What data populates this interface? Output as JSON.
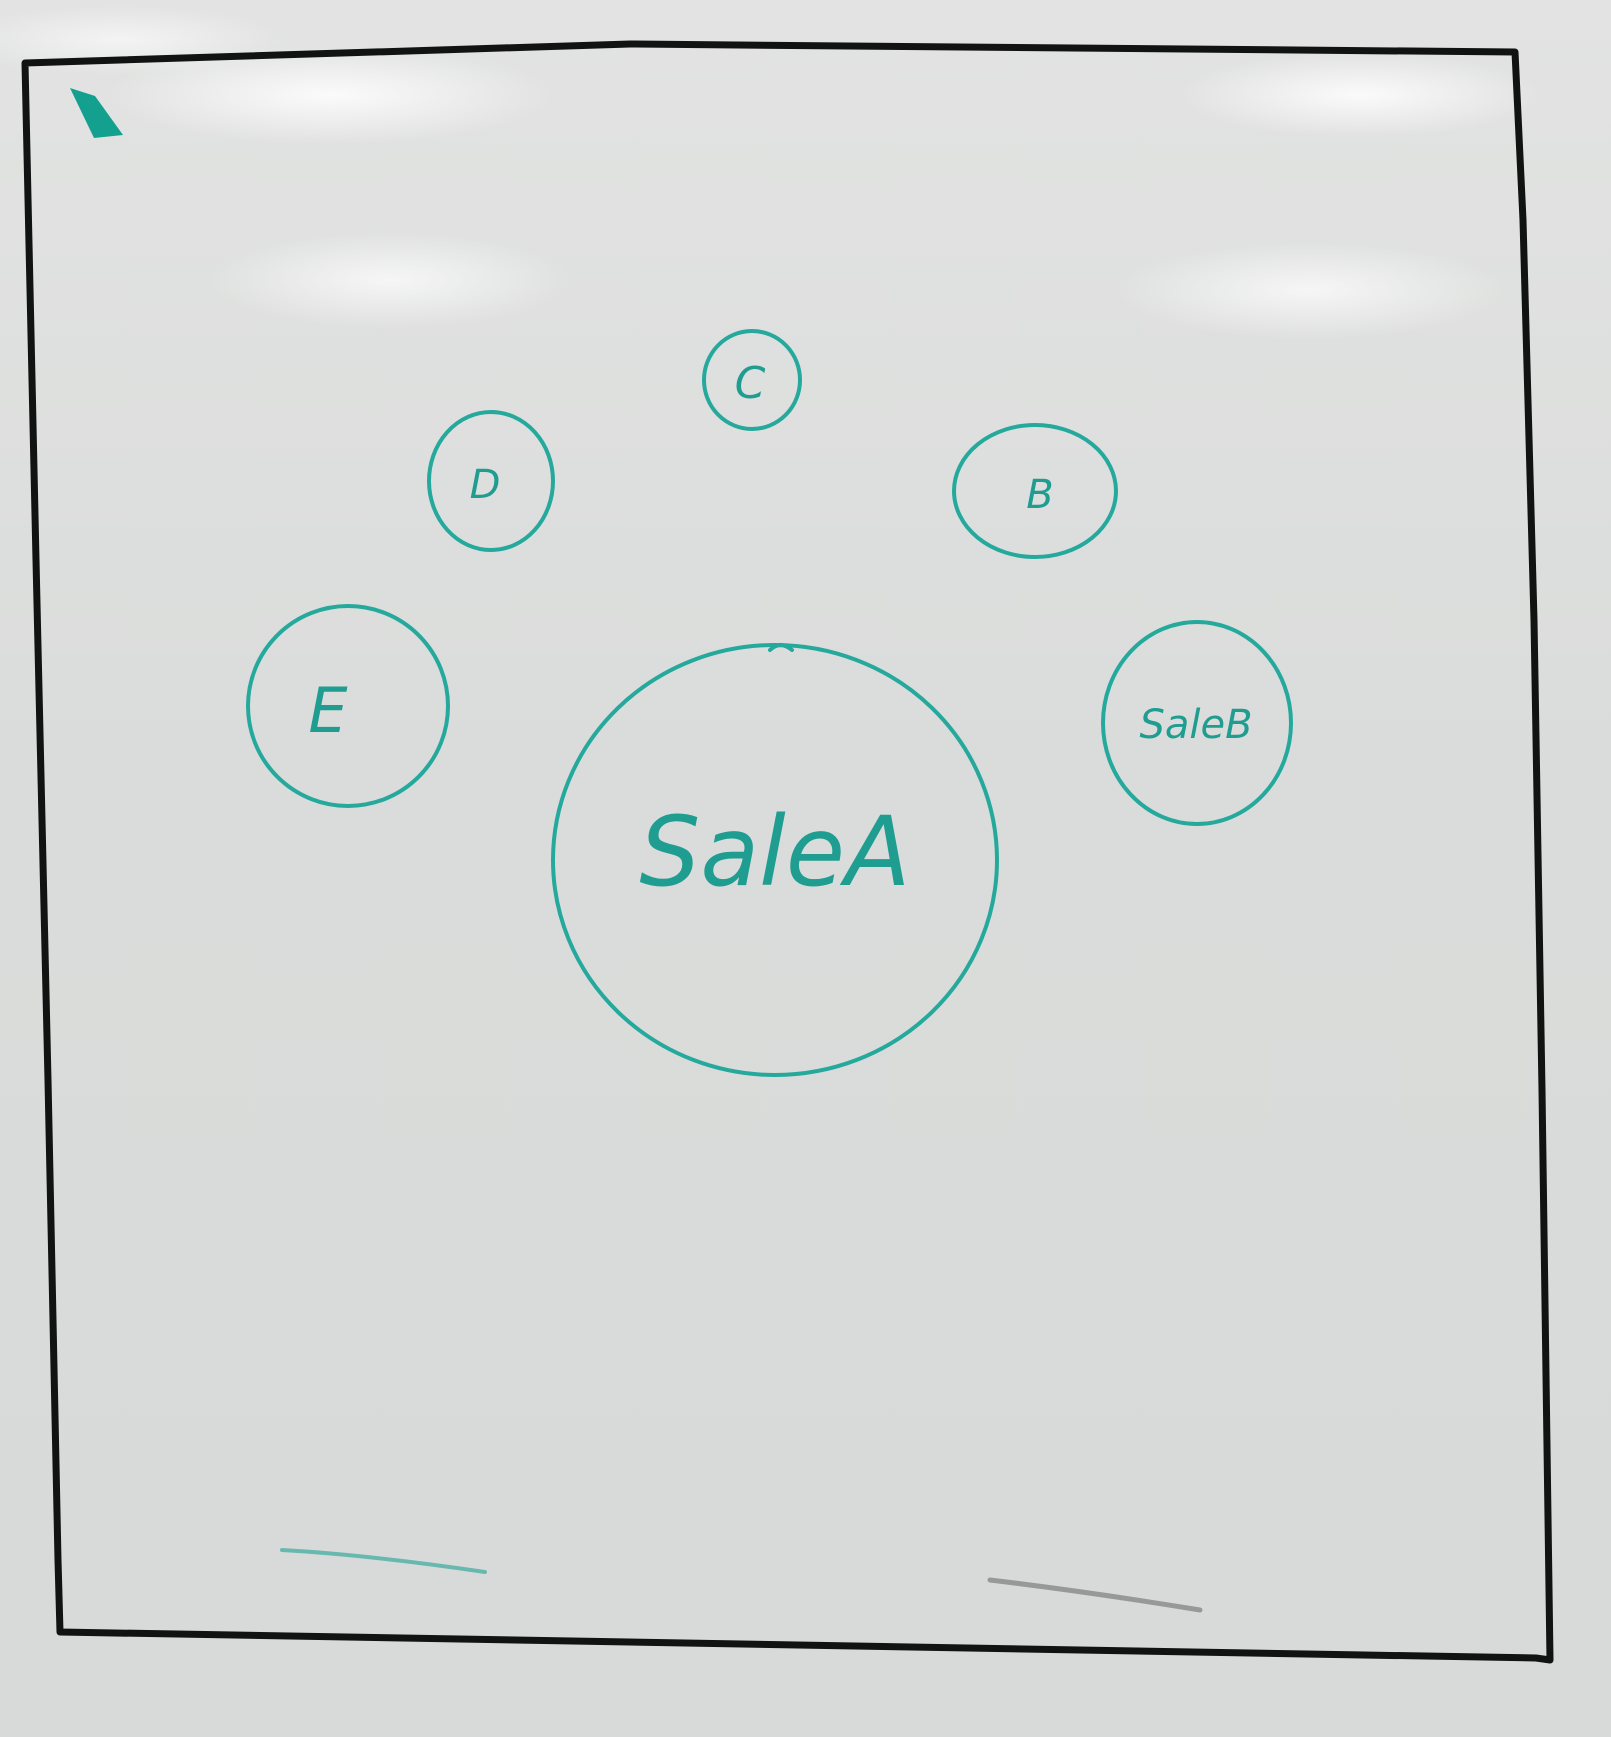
{
  "diagram": {
    "colors": {
      "marker": "#24a99c",
      "frame": "#111312",
      "board": "#dfe0df"
    },
    "nodes": {
      "center": {
        "label": "SaleA"
      },
      "top": {
        "label": "C"
      },
      "upper_left": {
        "label": "D"
      },
      "upper_right": {
        "label": "B"
      },
      "left": {
        "label": "E"
      },
      "right": {
        "label": "SaleB"
      }
    }
  }
}
